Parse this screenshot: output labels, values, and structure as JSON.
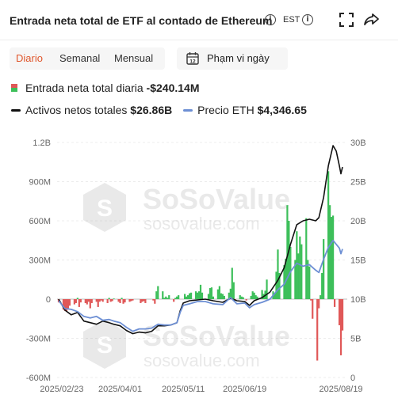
{
  "header": {
    "title": "Entrada neta total de ETF al contado de Ethereum",
    "timezone": "EST"
  },
  "tabs": [
    {
      "label": "Diario",
      "active": true
    },
    {
      "label": "Semanal",
      "active": false
    },
    {
      "label": "Mensual",
      "active": false
    }
  ],
  "date_range_label": "Phạm vi ngày",
  "legend": {
    "daily_label": "Entrada neta total diaria",
    "daily_value": "-$240.14M",
    "total_label": "Activos netos totales",
    "total_value": "$26.86B",
    "price_label": "Precio ETH",
    "price_value": "$4,346.65"
  },
  "watermark": {
    "brand": "SoSoValue",
    "url": "sosovalue.com"
  },
  "colors": {
    "inflow": "#3dbf5a",
    "outflow": "#e05858",
    "total_assets": "#111111",
    "eth_price": "#6d8fd4",
    "accent": "#e0572d"
  },
  "chart_data": {
    "type": "bar",
    "left_axis": {
      "ticks": [
        "1.2B",
        "900M",
        "600M",
        "300M",
        "0",
        "-300M",
        "-600M"
      ],
      "ylim": [
        -600,
        1200
      ],
      "unit": "M USD"
    },
    "right_axis": {
      "ticks": [
        "30B",
        "25B",
        "20B",
        "15B",
        "10B",
        "5B",
        "0"
      ],
      "ylim": [
        0,
        30
      ],
      "unit": "B USD"
    },
    "x_ticks": [
      "2025/02/23",
      "2025/04/01",
      "2025/05/11",
      "2025/06/19",
      "2025/08/19"
    ],
    "x_range": [
      "2025/02/20",
      "2025/08/23"
    ],
    "series": [
      {
        "name": "Entrada neta total diaria",
        "kind": "bar",
        "axis": "left",
        "points": [
          [
            "2025-02-21",
            -25
          ],
          [
            "2025-02-24",
            -80
          ],
          [
            "2025-02-25",
            -90
          ],
          [
            "2025-02-26",
            -95
          ],
          [
            "2025-02-27",
            -70
          ],
          [
            "2025-02-28",
            -50
          ],
          [
            "2025-03-03",
            -40
          ],
          [
            "2025-03-04",
            -30
          ],
          [
            "2025-03-05",
            10
          ],
          [
            "2025-03-06",
            -60
          ],
          [
            "2025-03-07",
            -25
          ],
          [
            "2025-03-10",
            -30
          ],
          [
            "2025-03-11",
            -40
          ],
          [
            "2025-03-12",
            -20
          ],
          [
            "2025-03-13",
            -70
          ],
          [
            "2025-03-14",
            -30
          ],
          [
            "2025-03-17",
            -20
          ],
          [
            "2025-03-18",
            -60
          ],
          [
            "2025-03-19",
            -20
          ],
          [
            "2025-03-20",
            -10
          ],
          [
            "2025-03-21",
            -20
          ],
          [
            "2025-03-24",
            -30
          ],
          [
            "2025-03-25",
            10
          ],
          [
            "2025-03-26",
            -20
          ],
          [
            "2025-03-27",
            -15
          ],
          [
            "2025-03-28",
            5
          ],
          [
            "2025-03-31",
            -20
          ],
          [
            "2025-04-01",
            -30
          ],
          [
            "2025-04-02",
            10
          ],
          [
            "2025-04-03",
            -35
          ],
          [
            "2025-04-04",
            -25
          ],
          [
            "2025-04-07",
            -20
          ],
          [
            "2025-04-08",
            -15
          ],
          [
            "2025-04-09",
            -10
          ],
          [
            "2025-04-14",
            -30
          ],
          [
            "2025-04-15",
            -20
          ],
          [
            "2025-04-16",
            -15
          ],
          [
            "2025-04-17",
            -30
          ],
          [
            "2025-04-22",
            -10
          ],
          [
            "2025-04-23",
            -35
          ],
          [
            "2025-04-24",
            60
          ],
          [
            "2025-04-25",
            100
          ],
          [
            "2025-04-28",
            60
          ],
          [
            "2025-04-29",
            10
          ],
          [
            "2025-04-30",
            20
          ],
          [
            "2025-05-01",
            10
          ],
          [
            "2025-05-02",
            30
          ],
          [
            "2025-05-05",
            -20
          ],
          [
            "2025-05-06",
            10
          ],
          [
            "2025-05-07",
            20
          ],
          [
            "2025-05-08",
            30
          ],
          [
            "2025-05-12",
            40
          ],
          [
            "2025-05-13",
            20
          ],
          [
            "2025-05-14",
            30
          ],
          [
            "2025-05-15",
            45
          ],
          [
            "2025-05-16",
            50
          ],
          [
            "2025-05-19",
            60
          ],
          [
            "2025-05-20",
            50
          ],
          [
            "2025-05-21",
            60
          ],
          [
            "2025-05-22",
            110
          ],
          [
            "2025-05-23",
            50
          ],
          [
            "2025-05-27",
            40
          ],
          [
            "2025-05-28",
            85
          ],
          [
            "2025-05-29",
            90
          ],
          [
            "2025-05-30",
            20
          ],
          [
            "2025-06-02",
            75
          ],
          [
            "2025-06-03",
            100
          ],
          [
            "2025-06-04",
            45
          ],
          [
            "2025-06-05",
            40
          ],
          [
            "2025-06-06",
            25
          ],
          [
            "2025-06-09",
            50
          ],
          [
            "2025-06-10",
            80
          ],
          [
            "2025-06-11",
            240
          ],
          [
            "2025-06-12",
            130
          ],
          [
            "2025-06-13",
            -10
          ],
          [
            "2025-06-16",
            30
          ],
          [
            "2025-06-17",
            20
          ],
          [
            "2025-06-18",
            15
          ],
          [
            "2025-06-20",
            -10
          ],
          [
            "2025-06-23",
            25
          ],
          [
            "2025-06-24",
            60
          ],
          [
            "2025-06-25",
            50
          ],
          [
            "2025-06-26",
            30
          ],
          [
            "2025-06-27",
            20
          ],
          [
            "2025-06-30",
            70
          ],
          [
            "2025-07-01",
            40
          ],
          [
            "2025-07-02",
            65
          ],
          [
            "2025-07-03",
            150
          ],
          [
            "2025-07-07",
            60
          ],
          [
            "2025-07-08",
            45
          ],
          [
            "2025-07-09",
            210
          ],
          [
            "2025-07-10",
            380
          ],
          [
            "2025-07-11",
            200
          ],
          [
            "2025-07-14",
            260
          ],
          [
            "2025-07-15",
            310
          ],
          [
            "2025-07-16",
            720
          ],
          [
            "2025-07-17",
            600
          ],
          [
            "2025-07-18",
            400
          ],
          [
            "2025-07-21",
            300
          ],
          [
            "2025-07-22",
            520
          ],
          [
            "2025-07-23",
            350
          ],
          [
            "2025-07-24",
            480
          ],
          [
            "2025-07-25",
            420
          ],
          [
            "2025-07-28",
            620
          ],
          [
            "2025-07-29",
            300
          ],
          [
            "2025-07-30",
            250
          ],
          [
            "2025-07-31",
            -10
          ],
          [
            "2025-08-01",
            -150
          ],
          [
            "2025-08-04",
            -470
          ],
          [
            "2025-08-05",
            -70
          ],
          [
            "2025-08-06",
            30
          ],
          [
            "2025-08-07",
            200
          ],
          [
            "2025-08-08",
            460
          ],
          [
            "2025-08-11",
            980
          ],
          [
            "2025-08-12",
            720
          ],
          [
            "2025-08-13",
            630
          ],
          [
            "2025-08-14",
            640
          ],
          [
            "2025-08-15",
            -60
          ],
          [
            "2025-08-18",
            -200
          ],
          [
            "2025-08-19",
            -430
          ],
          [
            "2025-08-20",
            -240
          ]
        ]
      },
      {
        "name": "Activos netos totales",
        "kind": "line",
        "axis": "right",
        "points": [
          [
            "2025-02-21",
            10.0
          ],
          [
            "2025-02-25",
            8.6
          ],
          [
            "2025-03-01",
            8.0
          ],
          [
            "2025-03-05",
            8.3
          ],
          [
            "2025-03-09",
            7.2
          ],
          [
            "2025-03-13",
            7.0
          ],
          [
            "2025-03-17",
            6.8
          ],
          [
            "2025-03-21",
            7.2
          ],
          [
            "2025-03-25",
            7.0
          ],
          [
            "2025-03-28",
            6.8
          ],
          [
            "2025-04-01",
            6.6
          ],
          [
            "2025-04-05",
            6.0
          ],
          [
            "2025-04-09",
            5.6
          ],
          [
            "2025-04-13",
            5.8
          ],
          [
            "2025-04-17",
            5.7
          ],
          [
            "2025-04-21",
            5.9
          ],
          [
            "2025-04-25",
            6.6
          ],
          [
            "2025-04-29",
            6.6
          ],
          [
            "2025-05-03",
            6.7
          ],
          [
            "2025-05-07",
            7.0
          ],
          [
            "2025-05-09",
            8.5
          ],
          [
            "2025-05-11",
            9.5
          ],
          [
            "2025-05-15",
            9.8
          ],
          [
            "2025-05-20",
            9.9
          ],
          [
            "2025-05-25",
            10.0
          ],
          [
            "2025-05-30",
            9.8
          ],
          [
            "2025-06-05",
            9.6
          ],
          [
            "2025-06-10",
            10.1
          ],
          [
            "2025-06-14",
            9.8
          ],
          [
            "2025-06-19",
            9.7
          ],
          [
            "2025-06-22",
            9.2
          ],
          [
            "2025-06-25",
            9.8
          ],
          [
            "2025-06-30",
            10.2
          ],
          [
            "2025-07-05",
            10.9
          ],
          [
            "2025-07-10",
            12.4
          ],
          [
            "2025-07-14",
            14.0
          ],
          [
            "2025-07-18",
            17.0
          ],
          [
            "2025-07-22",
            19.5
          ],
          [
            "2025-07-26",
            20.0
          ],
          [
            "2025-07-30",
            20.2
          ],
          [
            "2025-08-03",
            20.0
          ],
          [
            "2025-08-05",
            20.4
          ],
          [
            "2025-08-08",
            23.0
          ],
          [
            "2025-08-11",
            27.0
          ],
          [
            "2025-08-14",
            29.6
          ],
          [
            "2025-08-16",
            28.9
          ],
          [
            "2025-08-18",
            27.0
          ],
          [
            "2025-08-19",
            26.0
          ],
          [
            "2025-08-20",
            26.86
          ]
        ]
      },
      {
        "name": "Precio ETH",
        "kind": "line",
        "axis": "right",
        "points": [
          [
            "2025-02-21",
            9.8
          ],
          [
            "2025-02-25",
            8.8
          ],
          [
            "2025-03-01",
            8.7
          ],
          [
            "2025-03-05",
            8.4
          ],
          [
            "2025-03-09",
            7.8
          ],
          [
            "2025-03-13",
            7.6
          ],
          [
            "2025-03-17",
            7.8
          ],
          [
            "2025-03-21",
            7.3
          ],
          [
            "2025-03-25",
            7.4
          ],
          [
            "2025-03-28",
            7.2
          ],
          [
            "2025-04-01",
            7.0
          ],
          [
            "2025-04-05",
            6.4
          ],
          [
            "2025-04-09",
            5.9
          ],
          [
            "2025-04-13",
            6.2
          ],
          [
            "2025-04-17",
            6.2
          ],
          [
            "2025-04-21",
            6.3
          ],
          [
            "2025-04-25",
            6.8
          ],
          [
            "2025-04-29",
            6.7
          ],
          [
            "2025-05-03",
            6.7
          ],
          [
            "2025-05-07",
            7.0
          ],
          [
            "2025-05-09",
            8.3
          ],
          [
            "2025-05-11",
            9.2
          ],
          [
            "2025-05-15",
            9.4
          ],
          [
            "2025-05-20",
            9.7
          ],
          [
            "2025-05-25",
            9.7
          ],
          [
            "2025-05-30",
            9.4
          ],
          [
            "2025-06-05",
            9.3
          ],
          [
            "2025-06-10",
            10.2
          ],
          [
            "2025-06-14",
            9.4
          ],
          [
            "2025-06-19",
            9.5
          ],
          [
            "2025-06-22",
            8.9
          ],
          [
            "2025-06-25",
            9.3
          ],
          [
            "2025-06-30",
            9.6
          ],
          [
            "2025-07-05",
            10.0
          ],
          [
            "2025-07-10",
            11.2
          ],
          [
            "2025-07-14",
            11.9
          ],
          [
            "2025-07-18",
            13.5
          ],
          [
            "2025-07-22",
            14.6
          ],
          [
            "2025-07-26",
            14.2
          ],
          [
            "2025-07-30",
            14.4
          ],
          [
            "2025-08-03",
            13.7
          ],
          [
            "2025-08-05",
            13.4
          ],
          [
            "2025-08-08",
            15.1
          ],
          [
            "2025-08-11",
            16.6
          ],
          [
            "2025-08-14",
            17.5
          ],
          [
            "2025-08-16",
            17.0
          ],
          [
            "2025-08-18",
            16.5
          ],
          [
            "2025-08-19",
            15.8
          ],
          [
            "2025-08-20",
            16.4
          ]
        ]
      }
    ]
  }
}
